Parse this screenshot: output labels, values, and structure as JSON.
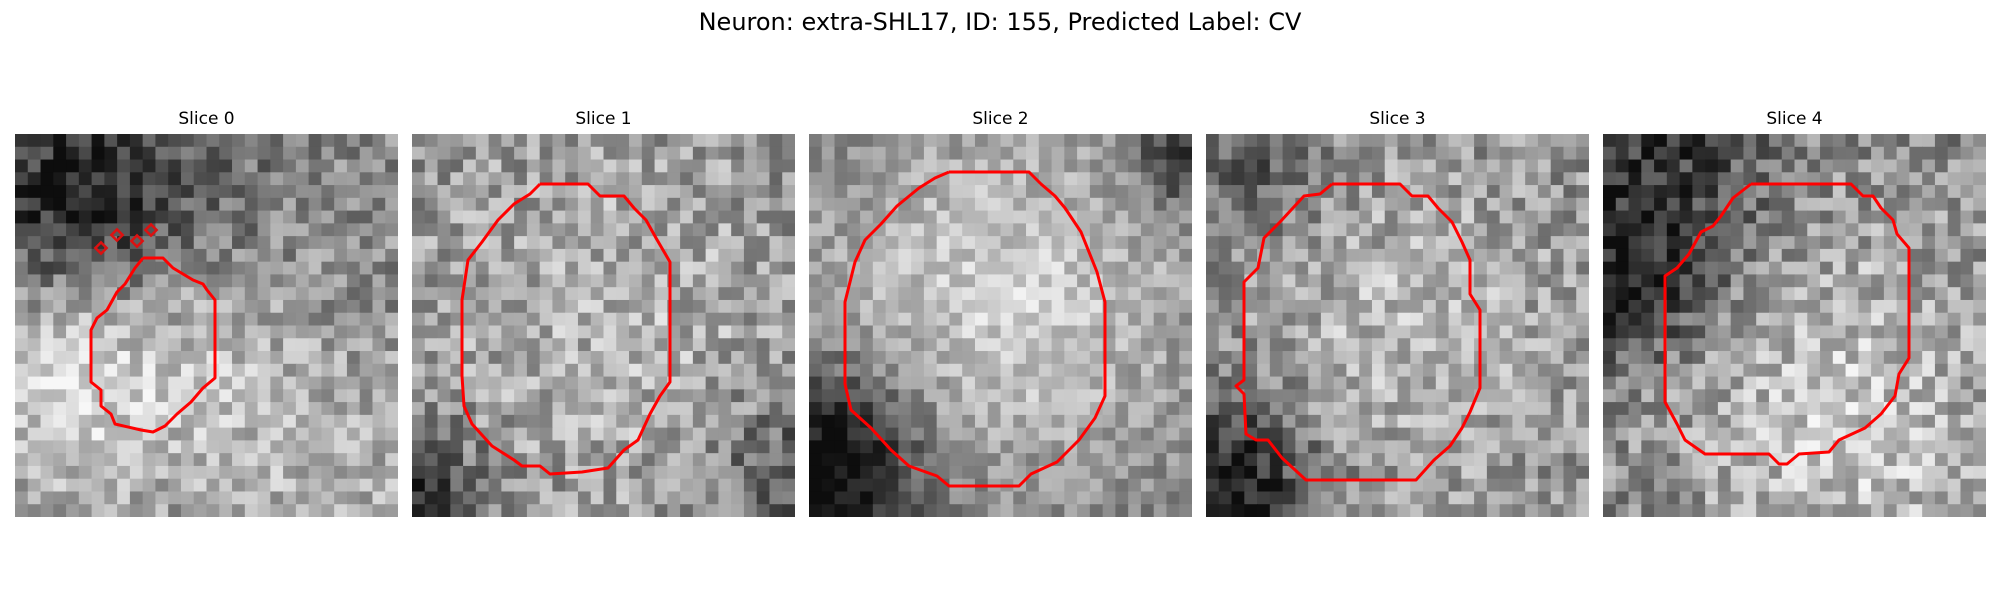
{
  "figure": {
    "title": "Neuron: extra-SHL17, ID: 155, Predicted Label: CV"
  },
  "panels": [
    {
      "title": "Slice 0"
    },
    {
      "title": "Slice 1"
    },
    {
      "title": "Slice 2"
    },
    {
      "title": "Slice 3"
    },
    {
      "title": "Slice 4"
    }
  ],
  "colors": {
    "contour": "#ff0000"
  }
}
